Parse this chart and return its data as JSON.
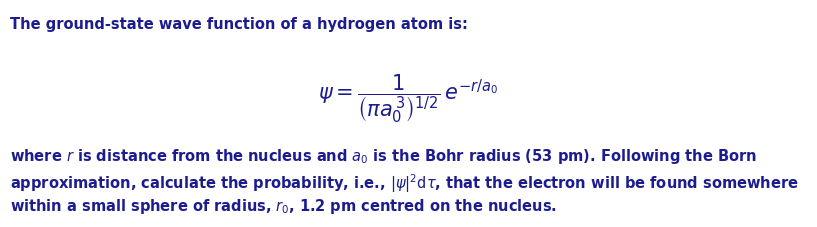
{
  "title_text": "The ground-state wave function of a hydrogen atom is:",
  "bg_color": "#ffffff",
  "text_color": "#1c1c8f",
  "title_color": "#1c1c8f",
  "font_size_title": 10.5,
  "font_size_body": 10.5,
  "font_size_formula": 15,
  "fig_width": 8.17,
  "fig_height": 2.27,
  "dpi": 100
}
